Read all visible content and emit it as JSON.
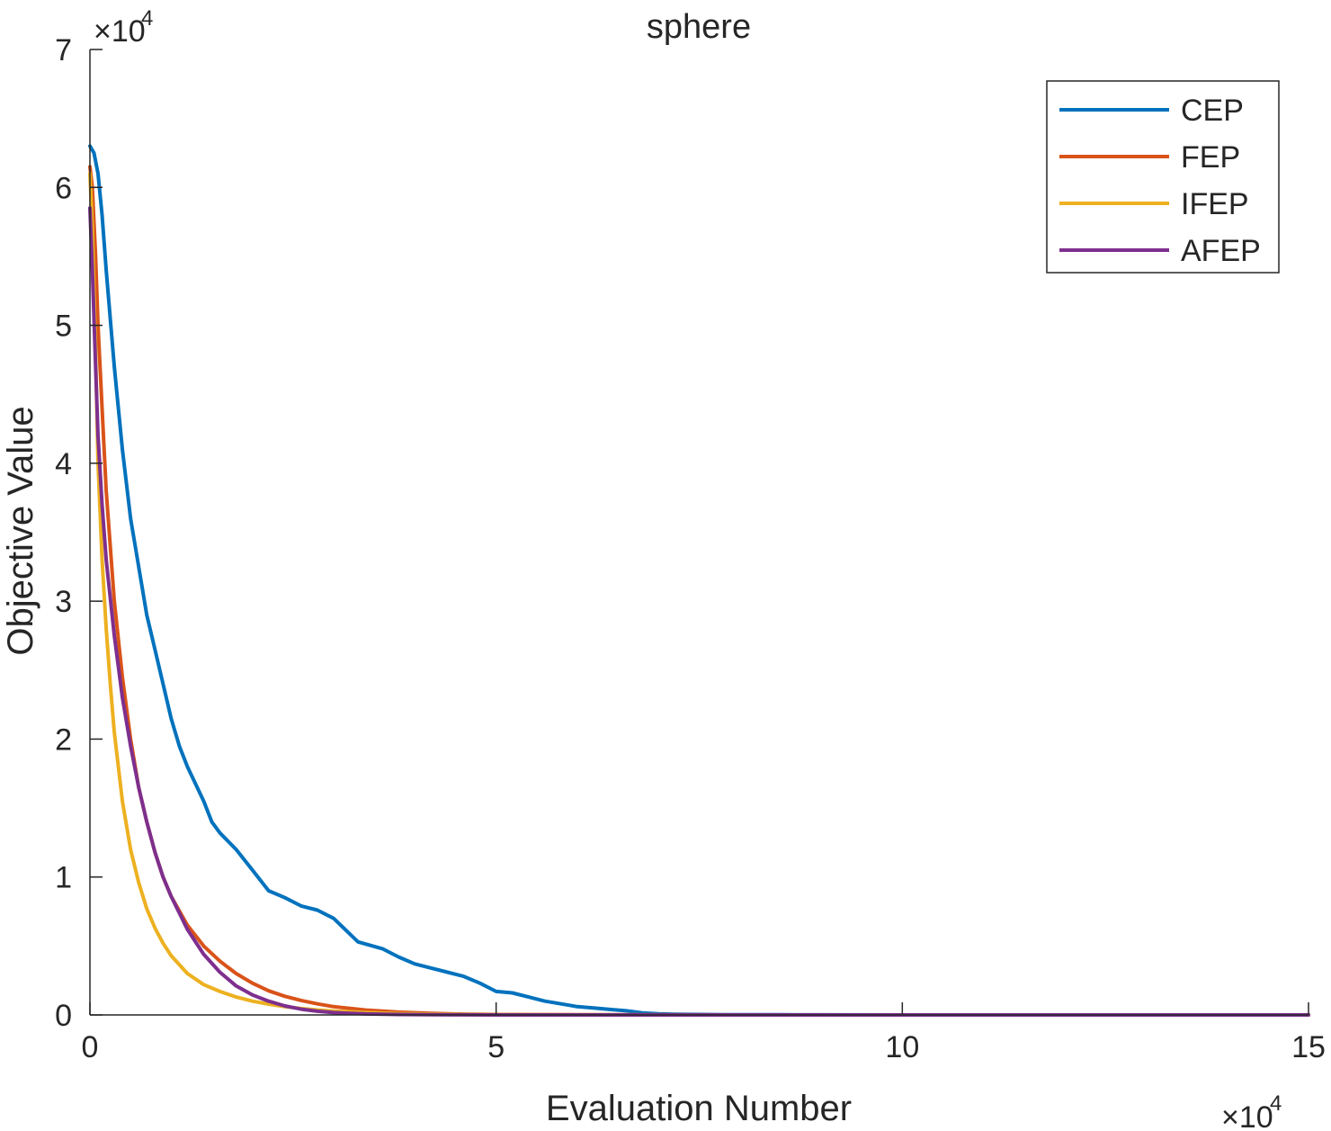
{
  "chart_data": {
    "type": "line",
    "title": "sphere",
    "xlabel": "Evaluation Number",
    "ylabel": "Objective Value",
    "x_exponent_label": "×10",
    "x_exponent_power": "4",
    "y_exponent_label": "×10",
    "y_exponent_power": "4",
    "xlim": [
      0,
      150000
    ],
    "ylim": [
      0,
      70000
    ],
    "x_ticks": [
      0,
      50000,
      100000,
      150000
    ],
    "x_tick_labels": [
      "0",
      "5",
      "10",
      "15"
    ],
    "y_ticks": [
      0,
      10000,
      20000,
      30000,
      40000,
      50000,
      60000,
      70000
    ],
    "y_tick_labels": [
      "0",
      "1",
      "2",
      "3",
      "4",
      "5",
      "6",
      "7"
    ],
    "grid": false,
    "legend_position": "top-right",
    "series": [
      {
        "name": "CEP",
        "color": "#0072BD",
        "x": [
          0,
          500,
          1000,
          1500,
          2000,
          3000,
          4000,
          5000,
          6000,
          7000,
          8000,
          9000,
          10000,
          11000,
          12000,
          14000,
          15000,
          16000,
          18000,
          20000,
          22000,
          24000,
          26000,
          28000,
          30000,
          33000,
          36000,
          38000,
          40000,
          42000,
          44000,
          46000,
          48000,
          50000,
          52000,
          54000,
          56000,
          58000,
          60000,
          62000,
          64000,
          66000,
          68000,
          70000,
          72000,
          75000,
          78000,
          80000,
          85000,
          90000,
          100000,
          120000,
          150000
        ],
        "y": [
          63000,
          62500,
          61000,
          58000,
          54000,
          47000,
          41000,
          36000,
          32500,
          29000,
          26500,
          24000,
          21500,
          19500,
          18000,
          15500,
          14000,
          13200,
          12000,
          10500,
          9000,
          8500,
          7900,
          7600,
          7000,
          5300,
          4800,
          4200,
          3700,
          3400,
          3100,
          2800,
          2300,
          1700,
          1600,
          1300,
          1000,
          800,
          600,
          500,
          400,
          300,
          150,
          80,
          50,
          30,
          20,
          15,
          10,
          5,
          2,
          0,
          0
        ]
      },
      {
        "name": "FEP",
        "color": "#D95319",
        "x": [
          0,
          300,
          700,
          1000,
          1500,
          2000,
          3000,
          4000,
          5000,
          6000,
          7000,
          8000,
          9000,
          10000,
          12000,
          14000,
          16000,
          18000,
          20000,
          22000,
          24000,
          26000,
          28000,
          30000,
          34000,
          38000,
          42000,
          46000,
          50000,
          60000,
          80000,
          100000,
          150000
        ],
        "y": [
          61500,
          60000,
          55000,
          50000,
          44000,
          38000,
          30000,
          24500,
          20000,
          16500,
          14000,
          11800,
          10000,
          8600,
          6500,
          5000,
          3900,
          3000,
          2300,
          1750,
          1350,
          1050,
          800,
          600,
          350,
          200,
          110,
          60,
          35,
          10,
          2,
          0,
          0
        ]
      },
      {
        "name": "IFEP",
        "color": "#EDB120",
        "x": [
          0,
          300,
          700,
          1000,
          1500,
          2000,
          2500,
          3000,
          4000,
          5000,
          6000,
          7000,
          8000,
          9000,
          10000,
          12000,
          14000,
          16000,
          18000,
          20000,
          22000,
          24000,
          26000,
          28000,
          30000,
          34000,
          38000,
          42000,
          46000,
          50000,
          60000,
          80000,
          100000,
          150000
        ],
        "y": [
          61000,
          57000,
          48000,
          40000,
          33000,
          28000,
          24000,
          20500,
          15500,
          12000,
          9600,
          7700,
          6300,
          5200,
          4300,
          3000,
          2200,
          1700,
          1300,
          1000,
          780,
          600,
          460,
          360,
          280,
          170,
          100,
          60,
          35,
          20,
          5,
          1,
          0,
          0
        ]
      },
      {
        "name": "AFEP",
        "color": "#7E2F8E",
        "x": [
          0,
          300,
          700,
          1000,
          1500,
          2000,
          3000,
          4000,
          5000,
          6000,
          7000,
          8000,
          9000,
          10000,
          12000,
          14000,
          16000,
          18000,
          20000,
          22000,
          24000,
          26000,
          28000,
          30000,
          34000,
          38000,
          42000,
          46000,
          50000,
          60000,
          80000,
          100000,
          150000
        ],
        "y": [
          58500,
          54000,
          47000,
          42000,
          37000,
          33000,
          27500,
          23000,
          19500,
          16500,
          14000,
          11800,
          10000,
          8600,
          6200,
          4400,
          3100,
          2100,
          1450,
          1000,
          650,
          420,
          270,
          170,
          70,
          30,
          12,
          5,
          2,
          0,
          0,
          0,
          0
        ]
      }
    ]
  }
}
